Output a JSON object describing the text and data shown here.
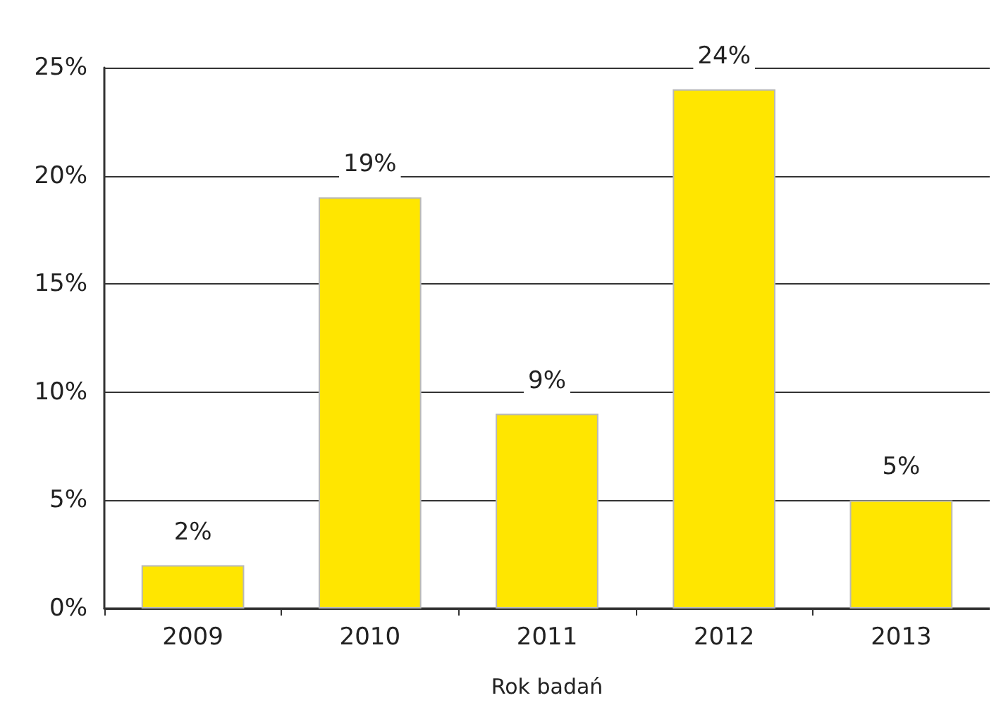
{
  "chart_data": {
    "type": "bar",
    "xlabel": "Rok badań",
    "categories": [
      "2009",
      "2010",
      "2011",
      "2012",
      "2013"
    ],
    "values": [
      2,
      19,
      9,
      24,
      5
    ],
    "value_labels": [
      "2%",
      "19%",
      "9%",
      "24%",
      "5%"
    ],
    "color": "#ffe600",
    "ylim": [
      0,
      25
    ],
    "yticks": [
      {
        "value": 0,
        "label": "0%"
      },
      {
        "value": 5,
        "label": "5%"
      },
      {
        "value": 10,
        "label": "10%"
      },
      {
        "value": 15,
        "label": "15%"
      },
      {
        "value": 20,
        "label": "20%"
      },
      {
        "value": 25,
        "label": "25%"
      }
    ],
    "grid": "y"
  }
}
